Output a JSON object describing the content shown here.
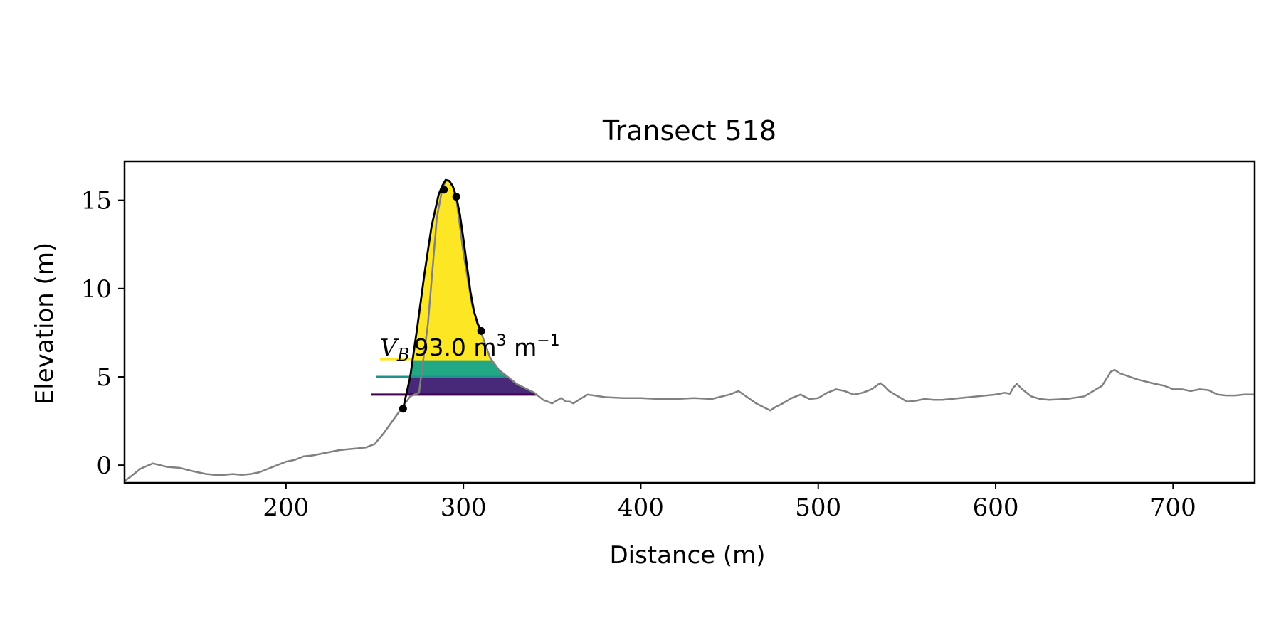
{
  "chart_data": {
    "type": "line",
    "title": "Transect 518",
    "xlabel": "Distance (m)",
    "ylabel": "Elevation (m)",
    "xlim": [
      109,
      746
    ],
    "ylim": [
      -1.0,
      17.2
    ],
    "xticks": [
      200,
      300,
      400,
      500,
      600,
      700
    ],
    "yticks": [
      0,
      5,
      10,
      15
    ],
    "xtick_labels": [
      "200",
      "300",
      "400",
      "500",
      "600",
      "700"
    ],
    "ytick_labels": [
      "0",
      "5",
      "10",
      "15"
    ],
    "grid": false,
    "annotation": {
      "symbol": "V",
      "subscript": "B",
      "value_text": "93.0 m",
      "unit_sup1": "3",
      "unit_mid": " m",
      "unit_sup2": "−1",
      "x": 253,
      "y": 6.2
    },
    "profile": {
      "color": "#808080",
      "x": [
        109,
        113,
        118,
        125,
        133,
        140,
        148,
        155,
        160,
        165,
        170,
        175,
        180,
        185,
        190,
        195,
        200,
        205,
        210,
        215,
        220,
        225,
        230,
        235,
        240,
        245,
        250,
        255,
        260,
        265,
        270,
        275,
        280,
        285,
        288,
        290,
        292,
        294,
        296,
        300,
        305,
        310,
        315,
        320,
        325,
        330,
        335,
        340,
        345,
        350,
        355,
        358,
        360,
        362,
        365,
        370,
        380,
        390,
        400,
        410,
        420,
        430,
        440,
        450,
        455,
        460,
        465,
        470,
        473,
        476,
        480,
        485,
        490,
        495,
        500,
        505,
        510,
        515,
        520,
        525,
        530,
        535,
        537,
        540,
        545,
        550,
        555,
        560,
        565,
        570,
        580,
        590,
        600,
        605,
        608,
        610,
        612,
        615,
        620,
        625,
        630,
        640,
        650,
        660,
        665,
        667,
        670,
        680,
        690,
        695,
        700,
        705,
        710,
        715,
        720,
        725,
        730,
        735,
        740,
        746
      ],
      "y": [
        -0.9,
        -0.6,
        -0.2,
        0.1,
        -0.1,
        -0.15,
        -0.35,
        -0.5,
        -0.55,
        -0.55,
        -0.5,
        -0.55,
        -0.5,
        -0.4,
        -0.2,
        0,
        0.2,
        0.3,
        0.5,
        0.55,
        0.65,
        0.75,
        0.85,
        0.9,
        0.95,
        1.0,
        1.2,
        1.8,
        2.5,
        3.2,
        3.9,
        4.1,
        8,
        14,
        15.6,
        16.1,
        16.1,
        15.8,
        15.1,
        12.0,
        9.0,
        7.5,
        6.1,
        5.4,
        5.0,
        4.6,
        4.35,
        4.1,
        3.7,
        3.5,
        3.8,
        3.6,
        3.6,
        3.5,
        3.7,
        4.0,
        3.85,
        3.8,
        3.8,
        3.75,
        3.75,
        3.8,
        3.75,
        4.0,
        4.2,
        3.85,
        3.5,
        3.25,
        3.1,
        3.3,
        3.5,
        3.8,
        4.0,
        3.75,
        3.8,
        4.1,
        4.3,
        4.2,
        4.0,
        4.1,
        4.3,
        4.65,
        4.5,
        4.2,
        3.9,
        3.6,
        3.65,
        3.75,
        3.7,
        3.7,
        3.8,
        3.9,
        4.0,
        4.1,
        4.05,
        4.4,
        4.6,
        4.3,
        3.9,
        3.75,
        3.7,
        3.75,
        3.9,
        4.5,
        5.3,
        5.4,
        5.2,
        4.85,
        4.6,
        4.5,
        4.3,
        4.3,
        4.2,
        4.3,
        4.25,
        4.0,
        3.95,
        3.95,
        4.0,
        4.0
      ]
    },
    "fitted_curve": {
      "color": "#000000",
      "x": [
        266,
        270,
        274,
        278,
        282,
        286,
        288,
        290,
        292,
        294,
        296,
        298,
        300,
        302,
        304,
        306,
        308,
        310
      ],
      "y": [
        3.2,
        5.0,
        7.8,
        10.8,
        13.5,
        15.3,
        15.8,
        16.15,
        16.1,
        15.8,
        15.2,
        14.2,
        12.8,
        11.3,
        9.8,
        8.7,
        8.0,
        7.6
      ]
    },
    "markers": {
      "color": "#000000",
      "x": [
        266,
        289,
        296,
        310
      ],
      "y": [
        3.2,
        15.6,
        15.2,
        7.6
      ]
    },
    "bands": [
      {
        "color": "#fde725",
        "y0": 6.0,
        "y1": 16.15,
        "line_x0": 253
      },
      {
        "color": "#21918c",
        "y0": 5.0,
        "y1": 6.0,
        "line_x0": 251
      },
      {
        "color": "#440154",
        "y0": 4.0,
        "y1": 5.0,
        "line_x0": 248
      }
    ],
    "band_fill_colors": [
      "#fde725",
      "#22a884",
      "#482878"
    ]
  }
}
